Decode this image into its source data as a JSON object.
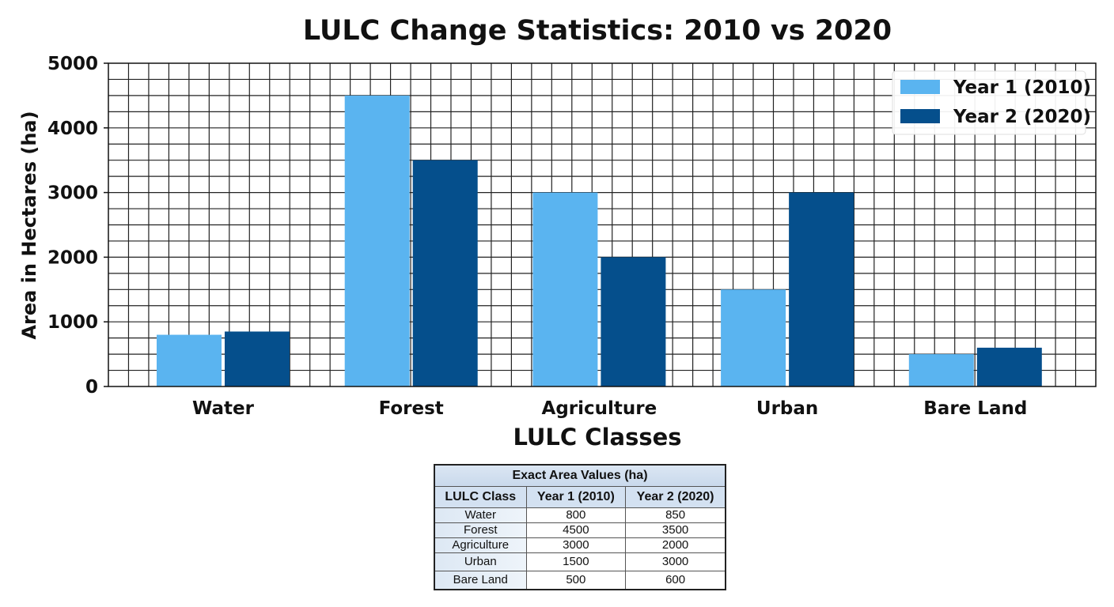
{
  "chart_data": {
    "type": "bar",
    "title": "LULC Change Statistics: 2010 vs 2020",
    "xlabel": "LULC Classes",
    "ylabel": "Area in Hectares (ha)",
    "categories": [
      "Water",
      "Forest",
      "Agriculture",
      "Urban",
      "Bare Land"
    ],
    "series": [
      {
        "name": "Year 1 (2010)",
        "values": [
          800,
          4500,
          3000,
          1500,
          500
        ],
        "color": "#5ab4f0"
      },
      {
        "name": "Year 2 (2020)",
        "values": [
          850,
          3500,
          2000,
          3000,
          600
        ],
        "color": "#054f8c"
      }
    ],
    "ylim": [
      0,
      5000
    ],
    "yticks": [
      "0",
      "1000",
      "2000",
      "3000",
      "4000",
      "5000"
    ],
    "grid": true,
    "legend_position": "top-right"
  },
  "table": {
    "caption": "Exact Area Values (ha)",
    "headers": [
      "LULC Class",
      "Year 1 (2010)",
      "Year 2 (2020)"
    ],
    "rows": [
      [
        "Water",
        "800",
        "850"
      ],
      [
        "Forest",
        "4500",
        "3500"
      ],
      [
        "Agriculture",
        "3000",
        "2000"
      ],
      [
        "Urban",
        "1500",
        "3000"
      ],
      [
        "Bare Land",
        "500",
        "600"
      ]
    ]
  }
}
